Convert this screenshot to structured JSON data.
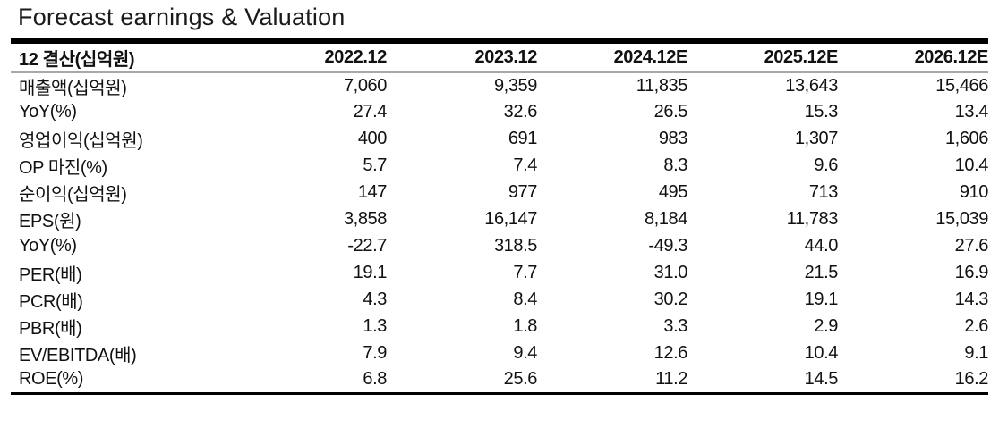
{
  "title": "Forecast earnings & Valuation",
  "colors": {
    "rule_heavy": "#000000",
    "rule_light": "#a8a8a8",
    "text": "#111111"
  },
  "table": {
    "header": {
      "label": "12 결산(십억원)",
      "columns": [
        "2022.12",
        "2023.12",
        "2024.12E",
        "2025.12E",
        "2026.12E"
      ]
    },
    "rows": [
      {
        "label": "매출액(십억원)",
        "bold_label": true,
        "bold_values": true,
        "values": [
          "7,060",
          "9,359",
          "11,835",
          "13,643",
          "15,466"
        ]
      },
      {
        "label": "YoY(%)",
        "bold_label": false,
        "bold_values": false,
        "values": [
          "27.4",
          "32.6",
          "26.5",
          "15.3",
          "13.4"
        ]
      },
      {
        "label": "영업이익(십억원)",
        "bold_label": true,
        "bold_values": true,
        "values": [
          "400",
          "691",
          "983",
          "1,307",
          "1,606"
        ]
      },
      {
        "label": "OP 마진(%)",
        "bold_label": false,
        "bold_values": false,
        "values": [
          "5.7",
          "7.4",
          "8.3",
          "9.6",
          "10.4"
        ]
      },
      {
        "label": "순이익(십억원)",
        "bold_label": true,
        "bold_values": true,
        "values": [
          "147",
          "977",
          "495",
          "713",
          "910"
        ]
      },
      {
        "label": "EPS(원)",
        "bold_label": true,
        "bold_values": false,
        "values": [
          "3,858",
          "16,147",
          "8,184",
          "11,783",
          "15,039"
        ]
      },
      {
        "label": "YoY(%)",
        "bold_label": false,
        "bold_values": false,
        "values": [
          "-22.7",
          "318.5",
          "-49.3",
          "44.0",
          "27.6"
        ]
      },
      {
        "label": "PER(배)",
        "bold_label": true,
        "bold_values": false,
        "values": [
          "19.1",
          "7.7",
          "31.0",
          "21.5",
          "16.9"
        ]
      },
      {
        "label": "PCR(배)",
        "bold_label": true,
        "bold_values": false,
        "values": [
          "4.3",
          "8.4",
          "30.2",
          "19.1",
          "14.3"
        ]
      },
      {
        "label": "PBR(배)",
        "bold_label": true,
        "bold_values": false,
        "values": [
          "1.3",
          "1.8",
          "3.3",
          "2.9",
          "2.6"
        ]
      },
      {
        "label": "EV/EBITDA(배)",
        "bold_label": true,
        "bold_values": false,
        "values": [
          "7.9",
          "9.4",
          "12.6",
          "10.4",
          "9.1"
        ]
      },
      {
        "label": "ROE(%)",
        "bold_label": true,
        "bold_values": false,
        "values": [
          "6.8",
          "25.6",
          "11.2",
          "14.5",
          "16.2"
        ]
      }
    ]
  }
}
